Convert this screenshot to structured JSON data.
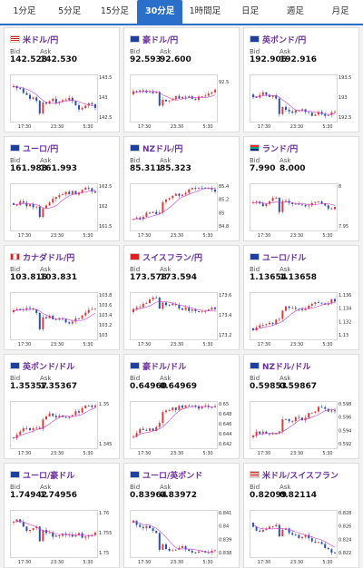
{
  "tabs": [
    {
      "label": "1分足",
      "active": false
    },
    {
      "label": "5分足",
      "active": false
    },
    {
      "label": "15分足",
      "active": false
    },
    {
      "label": "30分足",
      "active": true
    },
    {
      "label": "1時間足",
      "active": false
    },
    {
      "label": "日足",
      "active": false
    },
    {
      "label": "週足",
      "active": false
    },
    {
      "label": "月足",
      "active": false
    }
  ],
  "labels": {
    "bid": "Bid",
    "ask": "Ask"
  },
  "colors": {
    "up": "#e03a3a",
    "down": "#2a4fb8",
    "ma": "#cc3fcc",
    "accent": "#2a6fc9"
  },
  "pairs": [
    {
      "name": "米ドル/円",
      "flag": "us-flag-icon",
      "bid": "142.528",
      "ask": "142.530",
      "trend": "down",
      "x_labels": [
        "17:30",
        "23:30",
        "5:30"
      ],
      "y_labels": [
        "143.5",
        "143",
        "142.5"
      ]
    },
    {
      "name": "豪ドル/円",
      "flag": "au-flag-icon",
      "bid": "92.593",
      "ask": "92.600",
      "trend": "flat",
      "x_labels": [
        "17:30",
        "23:30",
        "5:30"
      ],
      "y_labels": [
        "92.5"
      ]
    },
    {
      "name": "英ポンド/円",
      "flag": "gb-flag-icon",
      "bid": "192.906",
      "ask": "192.916",
      "trend": "flat",
      "x_labels": [
        "17:30",
        "23:30",
        "5:30"
      ],
      "y_labels": [
        "193.5",
        "193",
        "192.5"
      ]
    },
    {
      "name": "ユーロ/円",
      "flag": "eu-flag-icon",
      "bid": "161.988",
      "ask": "161.993",
      "trend": "flat",
      "x_labels": [
        "17:30",
        "23:30",
        "5:30"
      ],
      "y_labels": [
        "162.5",
        "162",
        "161.5"
      ]
    },
    {
      "name": "NZドル/円",
      "flag": "nz-flag-icon",
      "bid": "85.311",
      "ask": "85.323",
      "trend": "up",
      "x_labels": [
        "17:30",
        "23:30",
        "5:30"
      ],
      "y_labels": [
        "85.4",
        "85.2",
        "85",
        "84.8"
      ]
    },
    {
      "name": "ランド/円",
      "flag": "za-flag-icon",
      "bid": "7.990",
      "ask": "8.000",
      "trend": "flat",
      "x_labels": [
        "17:30",
        "23:30",
        "5:30"
      ],
      "y_labels": [
        "8",
        "7.95"
      ]
    },
    {
      "name": "カナダドル/円",
      "flag": "ca-flag-icon",
      "bid": "103.816",
      "ask": "103.831",
      "trend": "flat",
      "x_labels": [
        "17:30",
        "23:30",
        "5:30"
      ],
      "y_labels": [
        "103.8",
        "103.6",
        "103.4",
        "103.2",
        "103"
      ]
    },
    {
      "name": "スイスフラン/円",
      "flag": "ch-flag-icon",
      "bid": "173.578",
      "ask": "173.594",
      "trend": "flat",
      "x_labels": [
        "17:30",
        "23:30",
        "5:30"
      ],
      "y_labels": [
        "173.6",
        "173.4",
        "173.2"
      ]
    },
    {
      "name": "ユーロ/ドル",
      "flag": "eu-flag-icon",
      "bid": "1.13654",
      "ask": "1.13658",
      "trend": "up",
      "x_labels": [
        "17:30",
        "23:30",
        "5:30"
      ],
      "y_labels": [
        "1.136",
        "1.134",
        "1.132",
        "1.13"
      ]
    },
    {
      "name": "英ポンド/ドル",
      "flag": "gb-flag-icon",
      "bid": "1.35357",
      "ask": "1.35367",
      "trend": "up",
      "x_labels": [
        "17:30",
        "23:30",
        "5:30"
      ],
      "y_labels": [
        "1.35",
        "1.345"
      ]
    },
    {
      "name": "豪ドル/ドル",
      "flag": "au-flag-icon",
      "bid": "0.64960",
      "ask": "0.64969",
      "trend": "up",
      "x_labels": [
        "17:30",
        "23:30",
        "5:30"
      ],
      "y_labels": [
        "0.65",
        "0.648",
        "0.646",
        "0.644",
        "0.642"
      ]
    },
    {
      "name": "NZドル/ドル",
      "flag": "nz-flag-icon",
      "bid": "0.59853",
      "ask": "0.59867",
      "trend": "up",
      "x_labels": [
        "17:30",
        "23:30",
        "5:30"
      ],
      "y_labels": [
        "0.598",
        "0.596",
        "0.594",
        "0.592"
      ]
    },
    {
      "name": "ユーロ/豪ドル",
      "flag": "eu-flag-icon",
      "bid": "1.74942",
      "ask": "1.74956",
      "trend": "down",
      "x_labels": [
        "17:30",
        "23:30",
        "5:30"
      ],
      "y_labels": [
        "1.76",
        "1.755",
        "1.75"
      ]
    },
    {
      "name": "ユーロ/英ポンド",
      "flag": "eu-flag-icon",
      "bid": "0.83964",
      "ask": "0.83972",
      "trend": "down",
      "x_labels": [
        "17:30",
        "23:30",
        "5:30"
      ],
      "y_labels": [
        "0.841",
        "0.84",
        "0.839",
        "0.838"
      ]
    },
    {
      "name": "米ドル/スイスフラン",
      "flag": "us-flag-icon",
      "bid": "0.82099",
      "ask": "0.82114",
      "trend": "down",
      "x_labels": [
        "17:30",
        "23:30",
        "5:30"
      ],
      "y_labels": [
        "0.828",
        "0.826",
        "0.824",
        "0.822"
      ]
    }
  ]
}
